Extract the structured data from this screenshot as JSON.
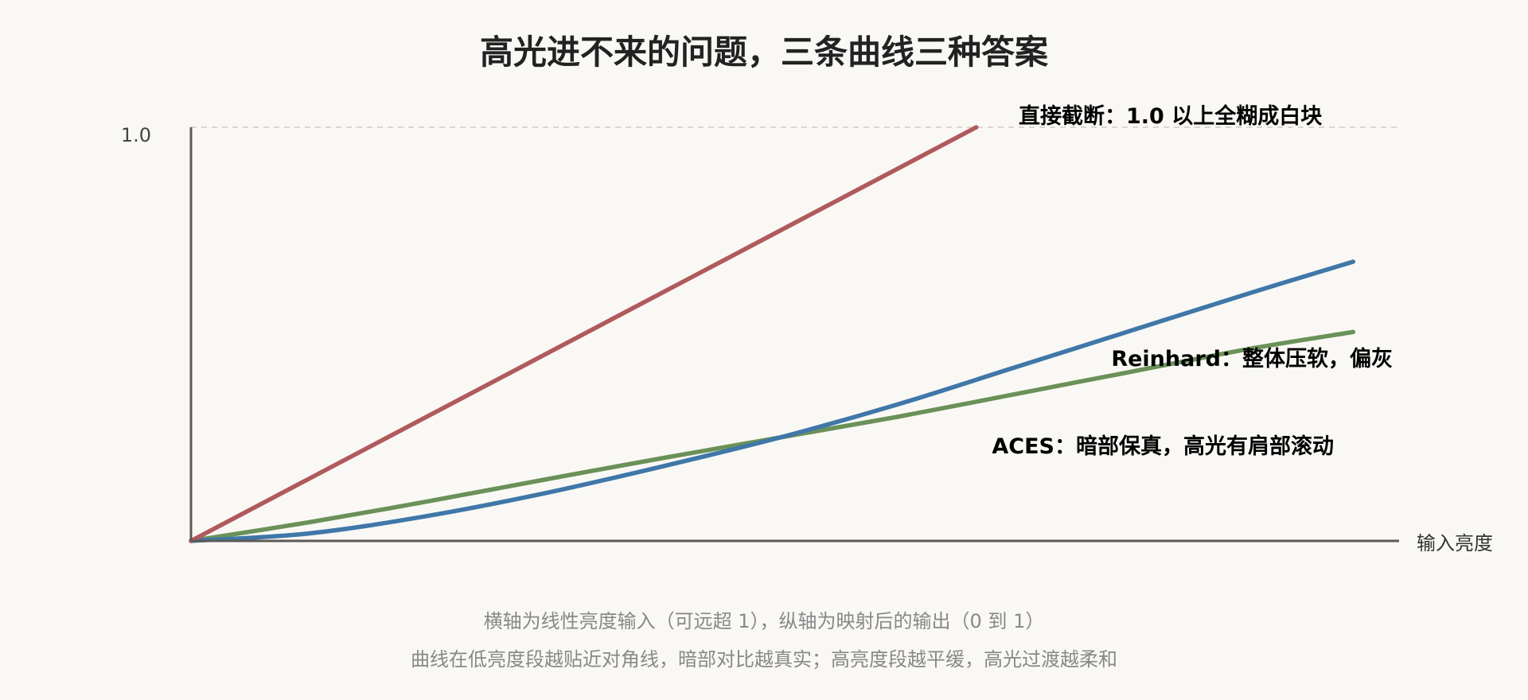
{
  "chart_data": {
    "type": "line",
    "title": "高光进不来的问题，三条曲线三种答案",
    "xlabel": "输入亮度",
    "ylabel": "",
    "x_range": [
      0,
      1.5
    ],
    "ylim": [
      0,
      1.0
    ],
    "y_ticks": [
      {
        "value": 1.0,
        "label": "1.0"
      }
    ],
    "reference_line": {
      "y": 1.0,
      "style": "dashed"
    },
    "series": [
      {
        "key": "clip",
        "color": "#b05a5c",
        "x": [
          0,
          1.0
        ],
        "y": [
          0,
          1.0
        ]
      },
      {
        "key": "reinhard",
        "color": "#6a9158",
        "x": [
          0,
          0.15,
          0.3,
          0.45,
          0.6,
          0.75,
          0.9,
          1.05,
          1.2,
          1.35,
          1.48
        ],
        "y": [
          0,
          0.045,
          0.095,
          0.148,
          0.2,
          0.25,
          0.3,
          0.355,
          0.41,
          0.465,
          0.505
        ]
      },
      {
        "key": "aces",
        "color": "#3f77a8",
        "x": [
          0,
          0.15,
          0.3,
          0.45,
          0.6,
          0.75,
          0.9,
          1.05,
          1.2,
          1.35,
          1.48
        ],
        "y": [
          0,
          0.018,
          0.06,
          0.115,
          0.18,
          0.25,
          0.33,
          0.42,
          0.51,
          0.6,
          0.675
        ]
      }
    ],
    "annotations": [
      {
        "series": "clip",
        "text": "直接截断：1.0 以上全糊成白块",
        "color": "#b05a5c"
      },
      {
        "series": "reinhard",
        "text": "Reinhard：整体压软，偏灰",
        "color": "#4a6b36"
      },
      {
        "series": "aces",
        "text": "ACES：暗部保真，高光有肩部滚动",
        "color": "#1f4a73"
      }
    ],
    "notes": [
      "横轴为线性亮度输入（可远超 1），纵轴为映射后的输出（0 到 1）",
      "曲线在低亮度段越贴近对角线，暗部对比越真实；高亮度段越平缓，高光过渡越柔和"
    ]
  }
}
